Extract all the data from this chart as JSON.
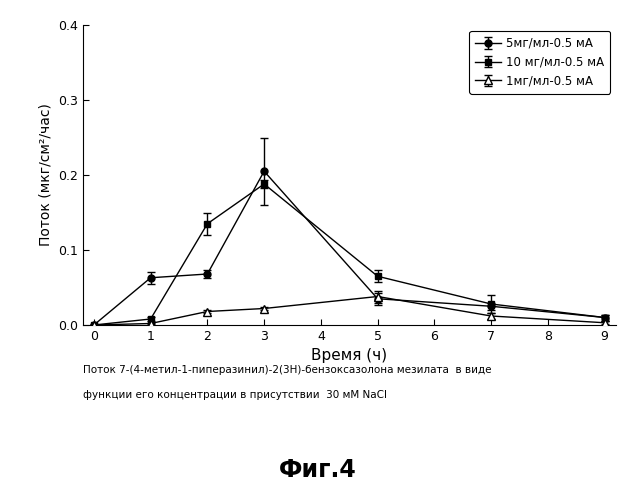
{
  "x": [
    0,
    1,
    2,
    3,
    5,
    7,
    9
  ],
  "series_5mg": [
    0.0,
    0.063,
    0.068,
    0.205,
    0.035,
    0.025,
    0.01
  ],
  "series_5mg_err": [
    0.0,
    0.008,
    0.005,
    0.045,
    0.008,
    0.005,
    0.004
  ],
  "series_10mg": [
    0.0,
    0.008,
    0.135,
    0.188,
    0.065,
    0.028,
    0.01
  ],
  "series_10mg_err": [
    0.0,
    0.003,
    0.015,
    0.005,
    0.008,
    0.012,
    0.004
  ],
  "series_1mg": [
    0.0,
    0.002,
    0.018,
    0.022,
    0.038,
    0.012,
    0.003
  ],
  "series_1mg_err": [
    0.0,
    0.001,
    0.002,
    0.002,
    0.008,
    0.004,
    0.002
  ],
  "legend_5mg": "5мг/мл-0.5 мА",
  "legend_10mg": "10 мг/мл-0.5 мА",
  "legend_1mg": "1мг/мл-0.5 мА",
  "xlabel": "Время (ч)",
  "ylabel": "Поток (мкг/см²/час)",
  "ylim": [
    0.0,
    0.4
  ],
  "xlim": [
    -0.2,
    9.2
  ],
  "yticks": [
    0.0,
    0.1,
    0.2,
    0.3,
    0.4
  ],
  "xticks": [
    0,
    1,
    2,
    3,
    4,
    5,
    6,
    7,
    8,
    9
  ],
  "caption_line1": "Поток 7-(4-метил-1-пиперазинил)-2(3Н)-бензоксазолона мезилата  в виде",
  "caption_line2": "функции его концентрации в присутствии  30 мМ NaCl",
  "fig_label": "Фиг.4",
  "color": "#000000",
  "bg_color": "#ffffff"
}
